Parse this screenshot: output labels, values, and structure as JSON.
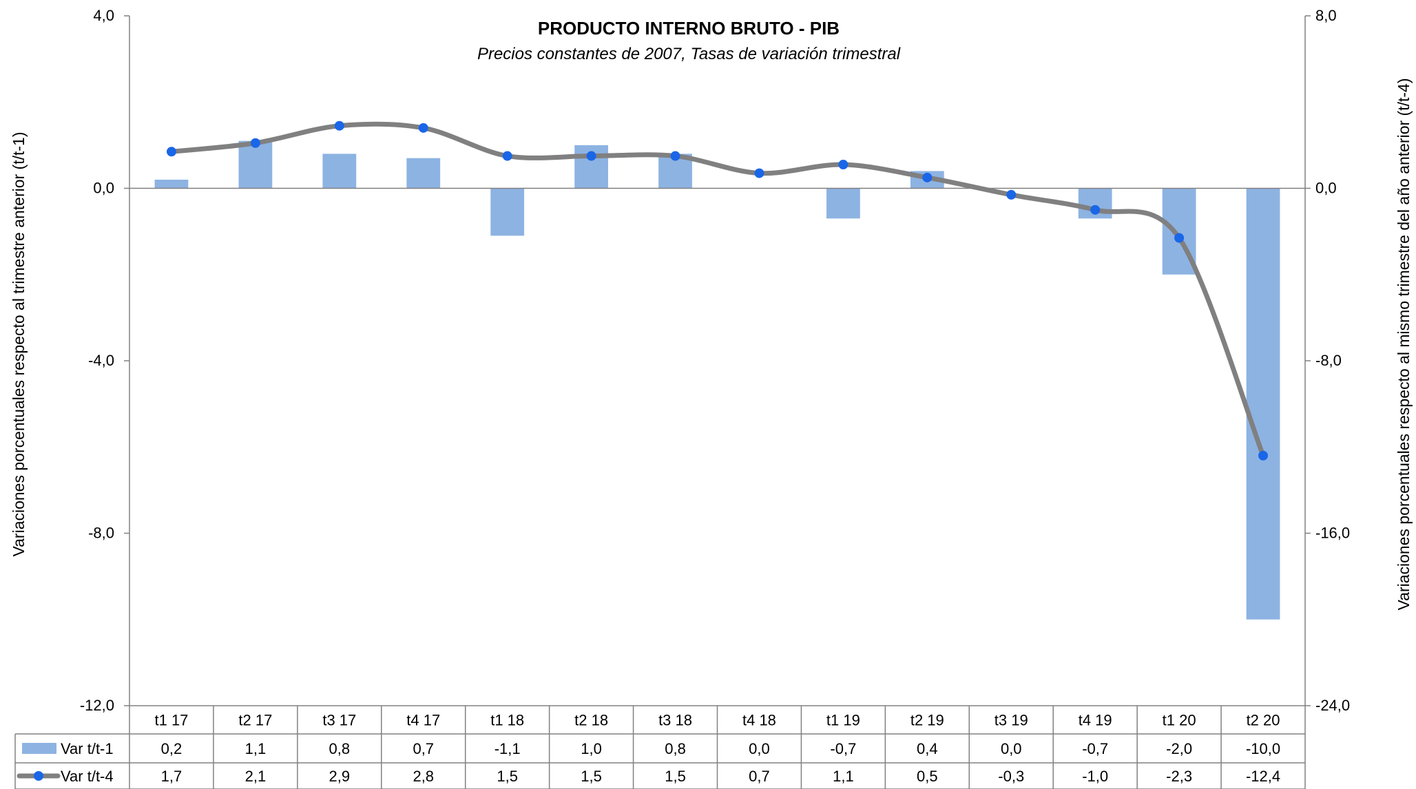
{
  "chart_data": {
    "type": "bar",
    "title": "PRODUCTO INTERNO BRUTO - PIB",
    "subtitle": "Precios constantes de 2007, Tasas de variación trimestral",
    "ylabel_left": "Variaciones porcentuales respecto al trimestre anterior (t/t-1)",
    "ylabel_right": "Variaciones porcentuales respecto al mismo trimestre del año anterior (t/t-4)",
    "y_left": {
      "min": -12,
      "max": 4,
      "ticks": [
        4,
        0,
        -4,
        -8,
        -12
      ],
      "tick_labels": [
        "4,0",
        "0,0",
        "-4,0",
        "-8,0",
        "-12,0"
      ]
    },
    "y_right": {
      "min": -24,
      "max": 8,
      "ticks": [
        8,
        0,
        -8,
        -16,
        -24
      ],
      "tick_labels": [
        "8,0",
        "0,0",
        "-8,0",
        "-16,0",
        "-24,0"
      ]
    },
    "categories": [
      "t1 17",
      "t2 17",
      "t3 17",
      "t4 17",
      "t1 18",
      "t2 18",
      "t3 18",
      "t4 18",
      "t1 19",
      "t2 19",
      "t3 19",
      "t4 19",
      "t1 20",
      "t2 20"
    ],
    "series": [
      {
        "name": "Var t/t-1",
        "type": "bar",
        "axis": "left",
        "color": "#8db3e2",
        "values": [
          0.2,
          1.1,
          0.8,
          0.7,
          -1.1,
          1.0,
          0.8,
          0.0,
          -0.7,
          0.4,
          0.0,
          -0.7,
          -2.0,
          -10.0
        ],
        "labels": [
          "0,2",
          "1,1",
          "0,8",
          "0,7",
          "-1,1",
          "1,0",
          "0,8",
          "0,0",
          "-0,7",
          "0,4",
          "0,0",
          "-0,7",
          "-2,0",
          "-10,0"
        ]
      },
      {
        "name": "Var t/t-4",
        "type": "line",
        "axis": "right",
        "color": "#808080",
        "marker_color": "#1a66e8",
        "values": [
          1.7,
          2.1,
          2.9,
          2.8,
          1.5,
          1.5,
          1.5,
          0.7,
          1.1,
          0.5,
          -0.3,
          -1.0,
          -2.3,
          -12.4
        ],
        "labels": [
          "1,7",
          "2,1",
          "2,9",
          "2,8",
          "1,5",
          "1,5",
          "1,5",
          "0,7",
          "1,1",
          "0,5",
          "-0,3",
          "-1,0",
          "-2,3",
          "-12,4"
        ]
      }
    ],
    "legend": "data-table",
    "grid": false
  }
}
